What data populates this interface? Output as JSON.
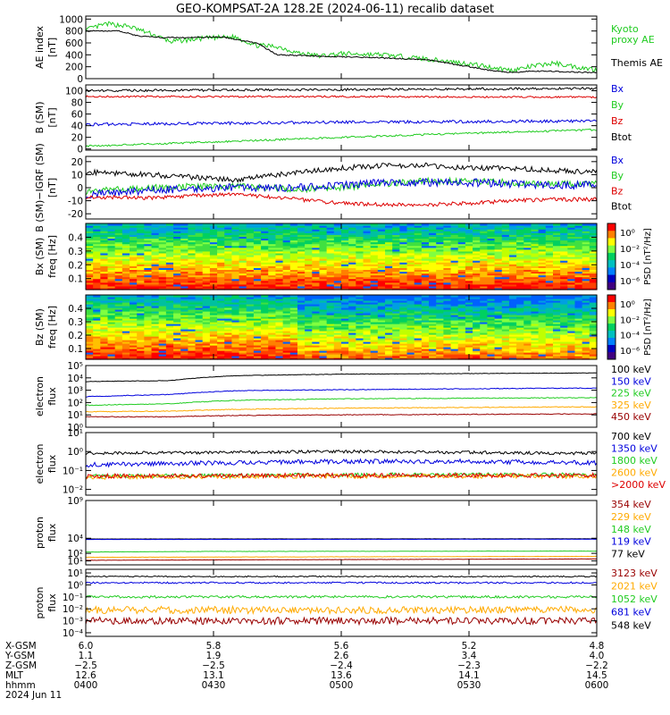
{
  "title": "GEO-KOMPSAT-2A 128.2E (2024-06-11) recalib dataset",
  "colors": {
    "black": "#000000",
    "blue": "#0000dd",
    "green": "#22cc22",
    "red": "#dd0000",
    "orange": "#ffaa00",
    "darkred": "#990000",
    "kyoto": "#22cc22"
  },
  "chart_data": [
    {
      "type": "line",
      "id": "ae",
      "ylabel": [
        "AE index",
        "[nT]"
      ],
      "yticks": [
        0,
        200,
        400,
        600,
        800,
        1000
      ],
      "ylim": [
        0,
        1050
      ],
      "scale": "linear",
      "legend": [
        {
          "text": "Kyoto",
          "color": "#22cc22"
        },
        {
          "text": "proxy AE",
          "color": "#22cc22"
        },
        {
          "text": "Themis AE",
          "color": "#000000"
        }
      ],
      "series": [
        {
          "name": "Kyoto proxy AE",
          "color": "#22cc22",
          "noise": 40,
          "x": [
            0,
            5,
            10,
            15,
            20,
            28,
            35,
            40,
            45,
            50,
            55,
            60,
            70,
            80,
            90,
            100,
            105,
            110,
            115,
            120
          ],
          "y": [
            820,
            920,
            880,
            760,
            620,
            680,
            700,
            560,
            540,
            430,
            380,
            420,
            400,
            330,
            250,
            140,
            210,
            260,
            200,
            150
          ]
        },
        {
          "name": "Themis AE",
          "color": "#000000",
          "noise": 10,
          "x": [
            0,
            8,
            12,
            18,
            25,
            32,
            40,
            45,
            55,
            65,
            80,
            90,
            95,
            100,
            105,
            110,
            115,
            120
          ],
          "y": [
            800,
            800,
            720,
            690,
            690,
            700,
            600,
            400,
            380,
            360,
            320,
            200,
            140,
            100,
            130,
            120,
            110,
            100
          ]
        }
      ]
    },
    {
      "type": "line",
      "id": "bsm",
      "ylabel": [
        "B (SM)",
        "[nT]"
      ],
      "yticks": [
        0,
        20,
        40,
        60,
        80,
        100
      ],
      "ylim": [
        -2,
        110
      ],
      "scale": "linear",
      "legend": [
        {
          "text": "Bx",
          "color": "#0000dd"
        },
        {
          "text": "By",
          "color": "#22cc22"
        },
        {
          "text": "Bz",
          "color": "#dd0000"
        },
        {
          "text": "Btot",
          "color": "#000000"
        }
      ],
      "series": [
        {
          "name": "Btot",
          "color": "#000000",
          "noise": 2,
          "x": [
            0,
            60,
            120
          ],
          "y": [
            100,
            102,
            104
          ]
        },
        {
          "name": "Bz",
          "color": "#dd0000",
          "noise": 1.5,
          "x": [
            0,
            60,
            120
          ],
          "y": [
            90,
            90,
            89
          ]
        },
        {
          "name": "Bx",
          "color": "#0000dd",
          "noise": 2.5,
          "x": [
            0,
            60,
            120
          ],
          "y": [
            42,
            46,
            48
          ]
        },
        {
          "name": "By",
          "color": "#22cc22",
          "noise": 1.5,
          "x": [
            0,
            30,
            60,
            90,
            120
          ],
          "y": [
            5,
            12,
            20,
            27,
            33
          ]
        }
      ]
    },
    {
      "type": "line",
      "id": "bigrf",
      "ylabel": [
        "B (SM)−IGRF (SM)",
        "[nT]"
      ],
      "yticks": [
        -20,
        -10,
        0,
        10,
        20
      ],
      "ylim": [
        -24,
        24
      ],
      "scale": "linear",
      "legend": [
        {
          "text": "Bx",
          "color": "#0000dd"
        },
        {
          "text": "By",
          "color": "#22cc22"
        },
        {
          "text": "Bz",
          "color": "#dd0000"
        },
        {
          "text": "Btot",
          "color": "#000000"
        }
      ],
      "series": [
        {
          "name": "Btot",
          "color": "#000000",
          "noise": 2,
          "x": [
            0,
            15,
            25,
            35,
            50,
            60,
            70,
            80,
            90,
            100,
            110,
            120
          ],
          "y": [
            12,
            10,
            8,
            6,
            12,
            15,
            17,
            17,
            15,
            15,
            13,
            12
          ]
        },
        {
          "name": "By",
          "color": "#22cc22",
          "noise": 2.5,
          "x": [
            0,
            15,
            25,
            35,
            50,
            60,
            70,
            80,
            90,
            100,
            110,
            120
          ],
          "y": [
            -3,
            0,
            1,
            1,
            -1,
            0,
            3,
            5,
            5,
            4,
            3,
            3
          ]
        },
        {
          "name": "Bx",
          "color": "#0000dd",
          "noise": 3,
          "x": [
            0,
            15,
            25,
            35,
            50,
            60,
            70,
            80,
            90,
            100,
            110,
            120
          ],
          "y": [
            -5,
            -2,
            -1,
            0,
            0,
            2,
            4,
            4,
            4,
            3,
            2,
            2
          ]
        },
        {
          "name": "Bz",
          "color": "#dd0000",
          "noise": 1.5,
          "x": [
            0,
            15,
            25,
            35,
            50,
            60,
            70,
            80,
            90,
            100,
            110,
            120
          ],
          "y": [
            -7,
            -8,
            -6,
            -5,
            -9,
            -12,
            -13,
            -13,
            -12,
            -10,
            -9,
            -9
          ]
        }
      ]
    },
    {
      "type": "heatmap",
      "id": "bxpsd",
      "ylabel": [
        "Bx (SM)",
        "freq [Hz]"
      ],
      "yticks": [
        0.1,
        0.2,
        0.3,
        0.4
      ],
      "ylim": [
        0.02,
        0.5
      ],
      "colorbar": {
        "label": "PSD [nT²/Hz]",
        "ticks": [
          "10⁰",
          "10⁻²",
          "10⁻⁴",
          "10⁻⁶"
        ]
      }
    },
    {
      "type": "heatmap",
      "id": "bzpsd",
      "ylabel": [
        "Bz (SM)",
        "freq [Hz]"
      ],
      "yticks": [
        0.1,
        0.2,
        0.3,
        0.4
      ],
      "ylim": [
        0.02,
        0.5
      ],
      "colorbar": {
        "label": "PSD [nT²/Hz]",
        "ticks": [
          "10⁰",
          "10⁻²",
          "10⁻⁴",
          "10⁻⁶"
        ]
      }
    },
    {
      "type": "line",
      "id": "elow",
      "ylabel": [
        "electron",
        "flux"
      ],
      "scale": "log",
      "ylim": [
        1,
        100000
      ],
      "yticks": [
        1,
        10,
        100,
        1000,
        10000,
        100000
      ],
      "ytick_labels": [
        "10⁰",
        "10¹",
        "10²",
        "10³",
        "10⁴",
        "10⁵"
      ],
      "legend": [
        {
          "text": "100 keV",
          "color": "#000000"
        },
        {
          "text": "150 keV",
          "color": "#0000dd"
        },
        {
          "text": "225 keV",
          "color": "#22cc22"
        },
        {
          "text": "325 keV",
          "color": "#ffaa00"
        },
        {
          "text": "450 keV",
          "color": "#990000"
        }
      ],
      "series": [
        {
          "name": "100 keV",
          "color": "#000000",
          "noise": 0.02,
          "x": [
            0,
            20,
            35,
            60,
            120
          ],
          "y": [
            5000,
            6000,
            15000,
            20000,
            25000
          ]
        },
        {
          "name": "150 keV",
          "color": "#0000dd",
          "noise": 0.03,
          "x": [
            0,
            20,
            35,
            60,
            120
          ],
          "y": [
            300,
            450,
            900,
            1100,
            1500
          ]
        },
        {
          "name": "225 keV",
          "color": "#22cc22",
          "noise": 0.03,
          "x": [
            0,
            20,
            35,
            60,
            120
          ],
          "y": [
            60,
            80,
            150,
            200,
            250
          ]
        },
        {
          "name": "325 keV",
          "color": "#ffaa00",
          "noise": 0.03,
          "x": [
            0,
            20,
            35,
            60,
            120
          ],
          "y": [
            18,
            20,
            28,
            35,
            45
          ]
        },
        {
          "name": "450 keV",
          "color": "#990000",
          "noise": 0.03,
          "x": [
            0,
            20,
            35,
            60,
            120
          ],
          "y": [
            7,
            7,
            9,
            10,
            12
          ]
        }
      ]
    },
    {
      "type": "line",
      "id": "ehigh",
      "ylabel": [
        "electron",
        "flux"
      ],
      "scale": "log",
      "ylim": [
        0.005,
        10
      ],
      "yticks": [
        0.01,
        0.1,
        1,
        10
      ],
      "ytick_labels": [
        "10⁻²",
        "10⁻¹",
        "10⁰",
        "10¹"
      ],
      "legend": [
        {
          "text": "700 keV",
          "color": "#000000"
        },
        {
          "text": "1350 keV",
          "color": "#0000dd"
        },
        {
          "text": "1800 keV",
          "color": "#22cc22"
        },
        {
          "text": "2600 keV",
          "color": "#ffaa00"
        },
        {
          "text": ">2000 keV",
          "color": "#dd0000"
        }
      ],
      "series": [
        {
          "name": "700 keV",
          "color": "#000000",
          "noise": 0.08,
          "x": [
            0,
            30,
            60,
            90,
            120
          ],
          "y": [
            0.8,
            0.9,
            1.0,
            0.9,
            0.8
          ]
        },
        {
          "name": "1350 keV",
          "color": "#0000dd",
          "noise": 0.12,
          "x": [
            0,
            30,
            60,
            90,
            120
          ],
          "y": [
            0.2,
            0.25,
            0.3,
            0.3,
            0.25
          ]
        },
        {
          "name": "1800 keV",
          "color": "#22cc22",
          "noise": 0.1,
          "x": [
            0,
            60,
            120
          ],
          "y": [
            0.05,
            0.06,
            0.06
          ]
        },
        {
          "name": "2600 keV",
          "color": "#ffaa00",
          "noise": 0.12,
          "x": [
            0,
            60,
            120
          ],
          "y": [
            0.045,
            0.05,
            0.05
          ]
        },
        {
          "name": ">2000 keV",
          "color": "#dd0000",
          "noise": 0.12,
          "x": [
            0,
            60,
            120
          ],
          "y": [
            0.05,
            0.055,
            0.055
          ]
        }
      ]
    },
    {
      "type": "line",
      "id": "phigh",
      "ylabel": [
        "proton",
        "flux"
      ],
      "scale": "log",
      "ylim": [
        3,
        1000000000
      ],
      "yticks": [
        10,
        100,
        10000,
        1000000000
      ],
      "ytick_labels": [
        "10¹",
        "10²",
        "10⁴",
        "10⁹"
      ],
      "legend": [
        {
          "text": "354 keV",
          "color": "#990000"
        },
        {
          "text": "229 keV",
          "color": "#ffaa00"
        },
        {
          "text": "148 keV",
          "color": "#22cc22"
        },
        {
          "text": "119 keV",
          "color": "#0000dd"
        },
        {
          "text": "77 keV",
          "color": "#000000"
        }
      ],
      "series": [
        {
          "name": "77 keV",
          "color": "#000000",
          "noise": 0.01,
          "x": [
            0,
            120
          ],
          "y": [
            8000,
            8500
          ]
        },
        {
          "name": "119 keV",
          "color": "#0000dd",
          "noise": 0.01,
          "x": [
            0,
            120
          ],
          "y": [
            7000,
            7400
          ]
        },
        {
          "name": "148 keV",
          "color": "#22cc22",
          "noise": 0.02,
          "x": [
            0,
            30,
            120
          ],
          "y": [
            150,
            180,
            200
          ]
        },
        {
          "name": "229 keV",
          "color": "#ffaa00",
          "noise": 0.02,
          "x": [
            0,
            60,
            120
          ],
          "y": [
            30,
            35,
            40
          ]
        },
        {
          "name": "354 keV",
          "color": "#990000",
          "noise": 0.02,
          "x": [
            0,
            60,
            120
          ],
          "y": [
            12,
            15,
            18
          ]
        }
      ]
    },
    {
      "type": "line",
      "id": "plow",
      "ylabel": [
        "proton",
        "flux"
      ],
      "scale": "log",
      "ylim": [
        5e-05,
        20
      ],
      "yticks": [
        0.0001,
        0.001,
        0.01,
        0.1,
        1,
        10
      ],
      "ytick_labels": [
        "10⁻⁴",
        "10⁻³",
        "10⁻²",
        "10⁻¹",
        "10⁰",
        "10¹"
      ],
      "legend": [
        {
          "text": "3123 keV",
          "color": "#990000"
        },
        {
          "text": "2021 keV",
          "color": "#ffaa00"
        },
        {
          "text": "1052 keV",
          "color": "#22cc22"
        },
        {
          "text": "681 keV",
          "color": "#0000dd"
        },
        {
          "text": "548 keV",
          "color": "#000000"
        }
      ],
      "series": [
        {
          "name": "548 keV",
          "color": "#000000",
          "noise": 0.05,
          "x": [
            0,
            120
          ],
          "y": [
            5,
            5
          ]
        },
        {
          "name": "681 keV",
          "color": "#0000dd",
          "noise": 0.07,
          "x": [
            0,
            120
          ],
          "y": [
            1.5,
            1.5
          ]
        },
        {
          "name": "1052 keV",
          "color": "#22cc22",
          "noise": 0.1,
          "x": [
            0,
            120
          ],
          "y": [
            0.1,
            0.1
          ]
        },
        {
          "name": "2021 keV",
          "color": "#ffaa00",
          "noise": 0.3,
          "x": [
            0,
            120
          ],
          "y": [
            0.008,
            0.008
          ]
        },
        {
          "name": "3123 keV",
          "color": "#990000",
          "noise": 0.3,
          "x": [
            0,
            120
          ],
          "y": [
            0.001,
            0.001
          ]
        }
      ]
    }
  ],
  "xaxis": {
    "rows": [
      {
        "label": "X-GSM",
        "values": [
          "6.0",
          "5.8",
          "5.6",
          "5.2",
          "4.8"
        ]
      },
      {
        "label": "Y-GSM",
        "values": [
          "1.1",
          "1.9",
          "2.6",
          "3.4",
          "4.0"
        ]
      },
      {
        "label": "Z-GSM",
        "values": [
          "−2.5",
          "−2.5",
          "−2.4",
          "−2.3",
          "−2.2"
        ]
      },
      {
        "label": "MLT",
        "values": [
          "12.6",
          "13.1",
          "13.6",
          "14.1",
          "14.5"
        ]
      },
      {
        "label": "hhmm",
        "values": [
          "0400",
          "0430",
          "0500",
          "0530",
          "0600"
        ]
      }
    ],
    "date": "2024 Jun 11",
    "tick_minutes": [
      0,
      30,
      60,
      90,
      120
    ]
  }
}
